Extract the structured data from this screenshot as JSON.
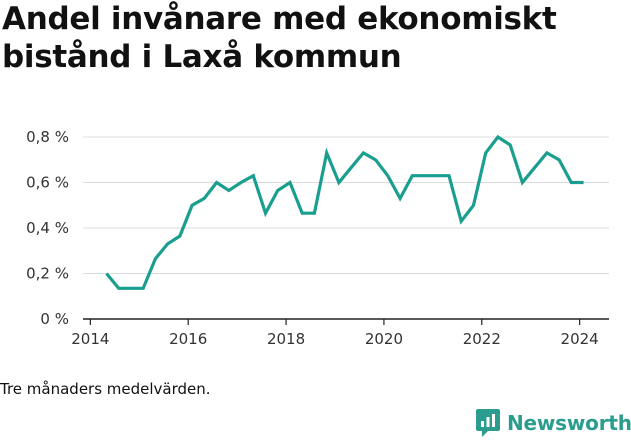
{
  "title": "Andel invånare med ekonomiskt bistånd i Laxå kommun",
  "note": "Tre månaders medelvärden.",
  "brand": {
    "name": "Newsworthy",
    "icon": "newsworthy-logo-icon",
    "color": "#2a9d8f"
  },
  "chart_data": {
    "type": "line",
    "title": "Andel invånare med ekonomiskt bistånd i Laxå kommun",
    "xlabel": "",
    "ylabel": "",
    "xlim": [
      2013.85,
      2024.6
    ],
    "ylim": [
      0,
      0.8
    ],
    "yticks": [
      0,
      0.2,
      0.4,
      0.6,
      0.8
    ],
    "ytick_labels": [
      "0 %",
      "0,2 %",
      "0,4 %",
      "0,6 %",
      "0,8 %"
    ],
    "xticks": [
      2014,
      2016,
      2018,
      2020,
      2022,
      2024
    ],
    "xtick_labels": [
      "2014",
      "2016",
      "2018",
      "2020",
      "2022",
      "2024"
    ],
    "grid": "horizontal",
    "line_color": "#1a9e8f",
    "series": [
      {
        "x": [
          2014.33,
          2014.58,
          2014.83,
          2015.08,
          2015.33,
          2015.58,
          2015.83,
          2016.08,
          2016.33,
          2016.58,
          2016.83,
          2017.08,
          2017.33,
          2017.58,
          2017.83,
          2018.08,
          2018.33,
          2018.58,
          2018.83,
          2019.08,
          2019.33,
          2019.58,
          2019.83,
          2020.08,
          2020.33,
          2020.58,
          2020.83,
          2021.08,
          2021.33,
          2021.58,
          2021.83,
          2022.08,
          2022.33,
          2022.58,
          2022.83,
          2023.08,
          2023.33,
          2023.58,
          2023.83,
          2024.08
        ],
        "values": [
          0.2,
          0.135,
          0.135,
          0.135,
          0.265,
          0.33,
          0.365,
          0.5,
          0.53,
          0.6,
          0.565,
          0.6,
          0.63,
          0.465,
          0.565,
          0.6,
          0.465,
          0.465,
          0.73,
          0.6,
          0.665,
          0.73,
          0.7,
          0.63,
          0.53,
          0.63,
          0.63,
          0.63,
          0.63,
          0.43,
          0.5,
          0.73,
          0.8,
          0.765,
          0.6,
          0.665,
          0.73,
          0.7,
          0.6,
          0.6
        ]
      }
    ]
  }
}
